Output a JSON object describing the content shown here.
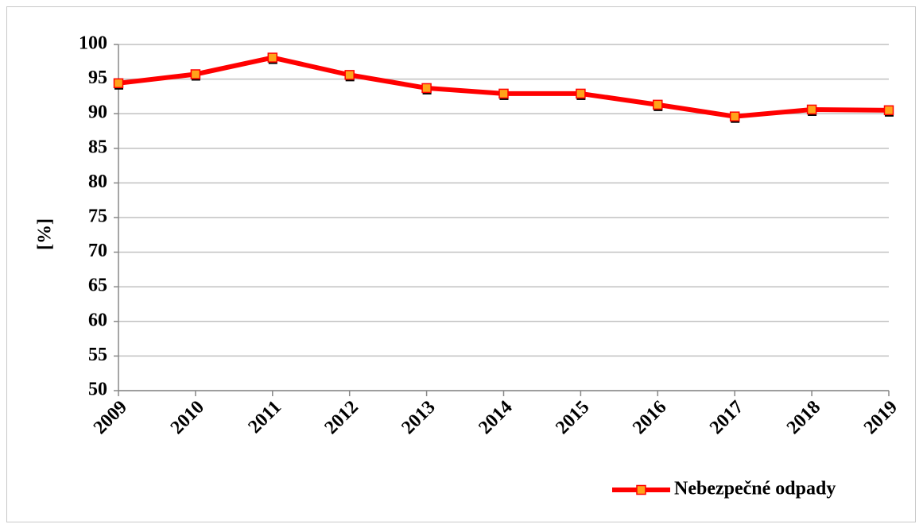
{
  "chart_data": {
    "type": "line",
    "y_label": "[%]",
    "categories": [
      "2009",
      "2010",
      "2011",
      "2012",
      "2013",
      "2014",
      "2015",
      "2016",
      "2017",
      "2018",
      "2019"
    ],
    "series": [
      {
        "name": "Nebezpečné odpady",
        "color": "#ff0000",
        "marker_color": "#ffa31a",
        "values": [
          94.4,
          95.7,
          98.1,
          95.6,
          93.7,
          92.9,
          92.9,
          91.3,
          89.6,
          90.6,
          90.5
        ]
      }
    ],
    "ylim": [
      50,
      100
    ],
    "yticks": [
      50,
      55,
      60,
      65,
      70,
      75,
      80,
      85,
      90,
      95,
      100
    ],
    "grid": true,
    "legend": "bottom-right"
  }
}
